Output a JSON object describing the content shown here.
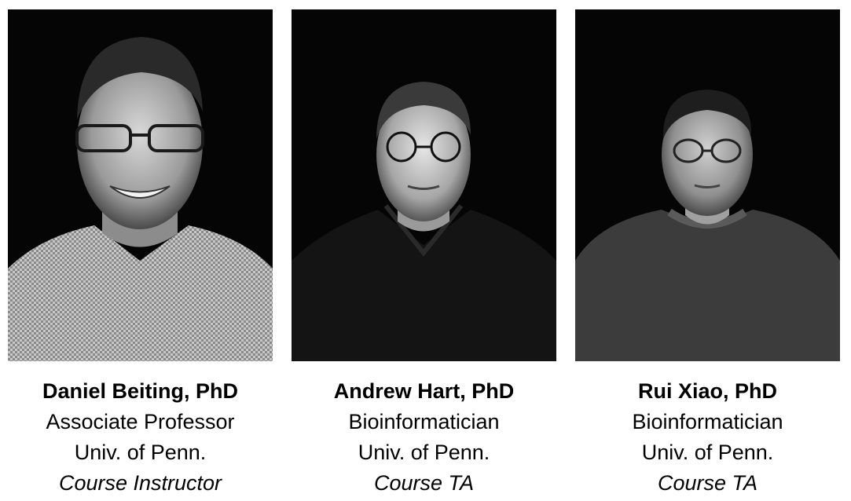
{
  "people": [
    {
      "name": "Daniel Beiting, PhD",
      "title": "Associate Professor",
      "affiliation": "Univ. of Penn.",
      "role": "Course Instructor"
    },
    {
      "name": "Andrew Hart, PhD",
      "title": "Bioinformatician",
      "affiliation": "Univ. of Penn.",
      "role": "Course TA"
    },
    {
      "name": "Rui Xiao, PhD",
      "title": "Bioinformatician",
      "affiliation": "Univ. of Penn.",
      "role": "Course TA"
    }
  ]
}
